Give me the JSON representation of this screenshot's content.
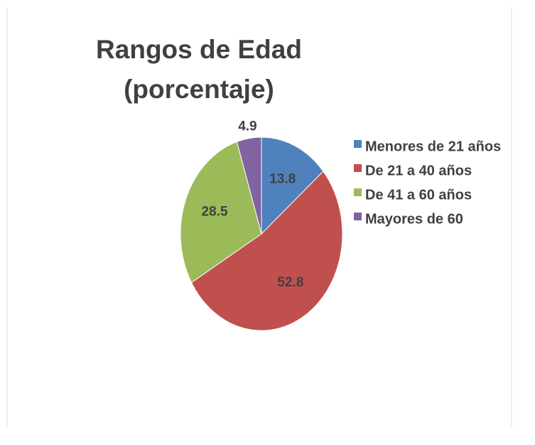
{
  "chart_data": {
    "type": "pie",
    "title": "Rangos de Edad (porcentaje)",
    "categories": [
      "Menores de 21 años",
      "De 21 a 40 años",
      "De 41 a 60 años",
      "Mayores de 60"
    ],
    "values": [
      13.8,
      52.8,
      28.5,
      4.9
    ],
    "colors": [
      "#4f81bd",
      "#c0504d",
      "#9bbb59",
      "#8064a2"
    ],
    "legend": "right"
  }
}
